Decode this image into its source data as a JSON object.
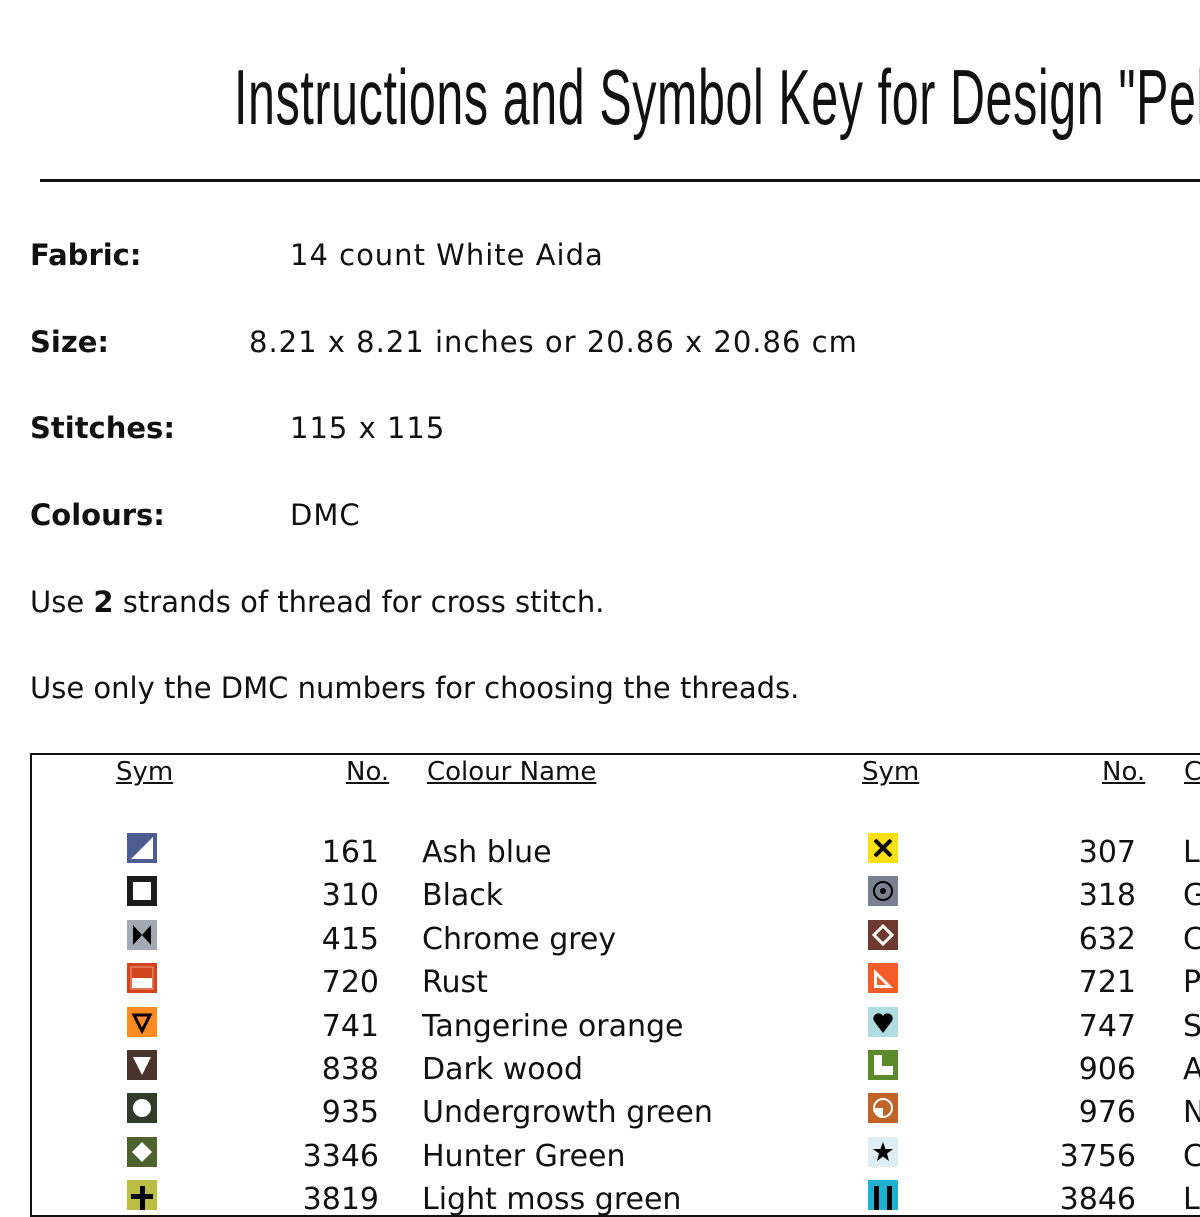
{
  "title": "Instructions and Symbol Key for Design \"Peles",
  "fabric": {
    "label": "Fabric:",
    "value": "14 count White Aida"
  },
  "size": {
    "label": "Size:",
    "value": "8.21 x 8.21 inches or 20.86 x 20.86 cm"
  },
  "stitches": {
    "label": "Stitches:",
    "value": "115 x 115"
  },
  "colours": {
    "label": "Colours:",
    "value": "DMC"
  },
  "strands": {
    "pre": "Use ",
    "num": "2",
    "post": " strands of thread for cross stitch."
  },
  "note": "Use only the DMC numbers for choosing the threads.",
  "headers": {
    "sym": "Sym",
    "no": "No.",
    "name": "Colour Name",
    "sym2": "Sym",
    "no2": "No.",
    "name2": "C"
  },
  "left": [
    {
      "no": "161",
      "name": "Ash blue",
      "color": "#4e5d8f",
      "icon": "triangle-half-icon"
    },
    {
      "no": "310",
      "name": "Black",
      "color": "#1c1c1c",
      "icon": "square-outline-icon"
    },
    {
      "no": "415",
      "name": "Chrome grey",
      "color": "#a3a9b2",
      "icon": "bowtie-icon"
    },
    {
      "no": "720",
      "name": "Rust",
      "color": "#d1441e",
      "icon": "half-rect-icon"
    },
    {
      "no": "741",
      "name": "Tangerine orange",
      "color": "#ff8a22",
      "icon": "triangle-down-outline-icon"
    },
    {
      "no": "838",
      "name": "Dark wood",
      "color": "#49332b",
      "icon": "triangle-down-icon"
    },
    {
      "no": "935",
      "name": "Undergrowth green",
      "color": "#333b2c",
      "icon": "circle-icon"
    },
    {
      "no": "3346",
      "name": "Hunter Green",
      "color": "#4f6330",
      "icon": "diamond-icon"
    },
    {
      "no": "3819",
      "name": "Light moss green",
      "color": "#bcbd44",
      "icon": "plus-icon"
    }
  ],
  "right": [
    {
      "no": "307",
      "name": "L",
      "color": "#fde012",
      "icon": "x-icon"
    },
    {
      "no": "318",
      "name": "G",
      "color": "#7a8291",
      "icon": "dot-circle-icon"
    },
    {
      "no": "632",
      "name": "C",
      "color": "#6e3a30",
      "icon": "diamond-outline-icon"
    },
    {
      "no": "721",
      "name": "P",
      "color": "#f25d2b",
      "icon": "set-square-icon"
    },
    {
      "no": "747",
      "name": "S",
      "color": "#b0dde1",
      "icon": "heart-icon"
    },
    {
      "no": "906",
      "name": "A",
      "color": "#5a8a2a",
      "icon": "l-shape-icon"
    },
    {
      "no": "976",
      "name": "N",
      "color": "#c0642a",
      "icon": "quarter-circle-icon"
    },
    {
      "no": "3756",
      "name": "C",
      "color": "#ddedf3",
      "icon": "star-icon"
    },
    {
      "no": "3846",
      "name": "L",
      "color": "#1fb0d2",
      "icon": "u-bars-icon"
    }
  ]
}
